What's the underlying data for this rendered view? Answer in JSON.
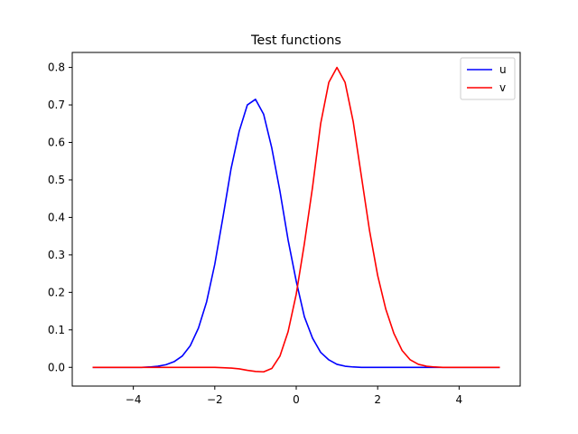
{
  "chart_data": {
    "type": "line",
    "title": "Test functions",
    "xlabel": "",
    "ylabel": "",
    "xlim": [
      -5.5,
      5.5
    ],
    "ylim": [
      -0.05,
      0.84
    ],
    "xticks": [
      -4,
      -2,
      0,
      2,
      4
    ],
    "xtick_labels": [
      "−4",
      "−2",
      "0",
      "2",
      "4"
    ],
    "yticks": [
      0.0,
      0.1,
      0.2,
      0.3,
      0.4,
      0.5,
      0.6,
      0.7,
      0.8
    ],
    "ytick_labels": [
      "0.0",
      "0.1",
      "0.2",
      "0.3",
      "0.4",
      "0.5",
      "0.6",
      "0.7",
      "0.8"
    ],
    "grid": false,
    "legend_position": "top-right",
    "series": [
      {
        "name": "u",
        "color": "#0000ff",
        "x": [
          -5.0,
          -4.8,
          -4.6,
          -4.4,
          -4.2,
          -4.0,
          -3.8,
          -3.6,
          -3.4,
          -3.2,
          -3.0,
          -2.8,
          -2.6,
          -2.4,
          -2.2,
          -2.0,
          -1.8,
          -1.6,
          -1.4,
          -1.2,
          -1.0,
          -0.8,
          -0.6,
          -0.4,
          -0.2,
          0.0,
          0.2,
          0.4,
          0.6,
          0.8,
          1.0,
          1.2,
          1.4,
          1.6,
          1.8,
          2.0,
          2.4,
          3.0,
          4.0,
          5.0
        ],
        "y": [
          0.0,
          0.0,
          0.0,
          0.0,
          0.0,
          0.0,
          0.0,
          0.001,
          0.003,
          0.007,
          0.015,
          0.03,
          0.058,
          0.105,
          0.175,
          0.275,
          0.4,
          0.53,
          0.63,
          0.7,
          0.715,
          0.675,
          0.585,
          0.47,
          0.34,
          0.23,
          0.135,
          0.078,
          0.04,
          0.02,
          0.008,
          0.003,
          0.001,
          0.0,
          0.0,
          0.0,
          0.0,
          0.0,
          0.0,
          0.0
        ]
      },
      {
        "name": "v",
        "color": "#ff0000",
        "x": [
          -5.0,
          -4.0,
          -3.0,
          -2.0,
          -1.8,
          -1.6,
          -1.4,
          -1.2,
          -1.0,
          -0.8,
          -0.6,
          -0.4,
          -0.2,
          0.0,
          0.2,
          0.4,
          0.6,
          0.8,
          1.0,
          1.2,
          1.4,
          1.6,
          1.8,
          2.0,
          2.2,
          2.4,
          2.6,
          2.8,
          3.0,
          3.2,
          3.4,
          3.6,
          3.8,
          4.0,
          5.0
        ],
        "y": [
          0.0,
          0.0,
          0.0,
          0.0,
          -0.001,
          -0.002,
          -0.004,
          -0.008,
          -0.011,
          -0.012,
          -0.003,
          0.03,
          0.095,
          0.195,
          0.33,
          0.48,
          0.65,
          0.76,
          0.8,
          0.76,
          0.655,
          0.51,
          0.365,
          0.245,
          0.155,
          0.09,
          0.045,
          0.02,
          0.008,
          0.003,
          0.001,
          0.0,
          0.0,
          0.0,
          0.0
        ]
      }
    ]
  }
}
